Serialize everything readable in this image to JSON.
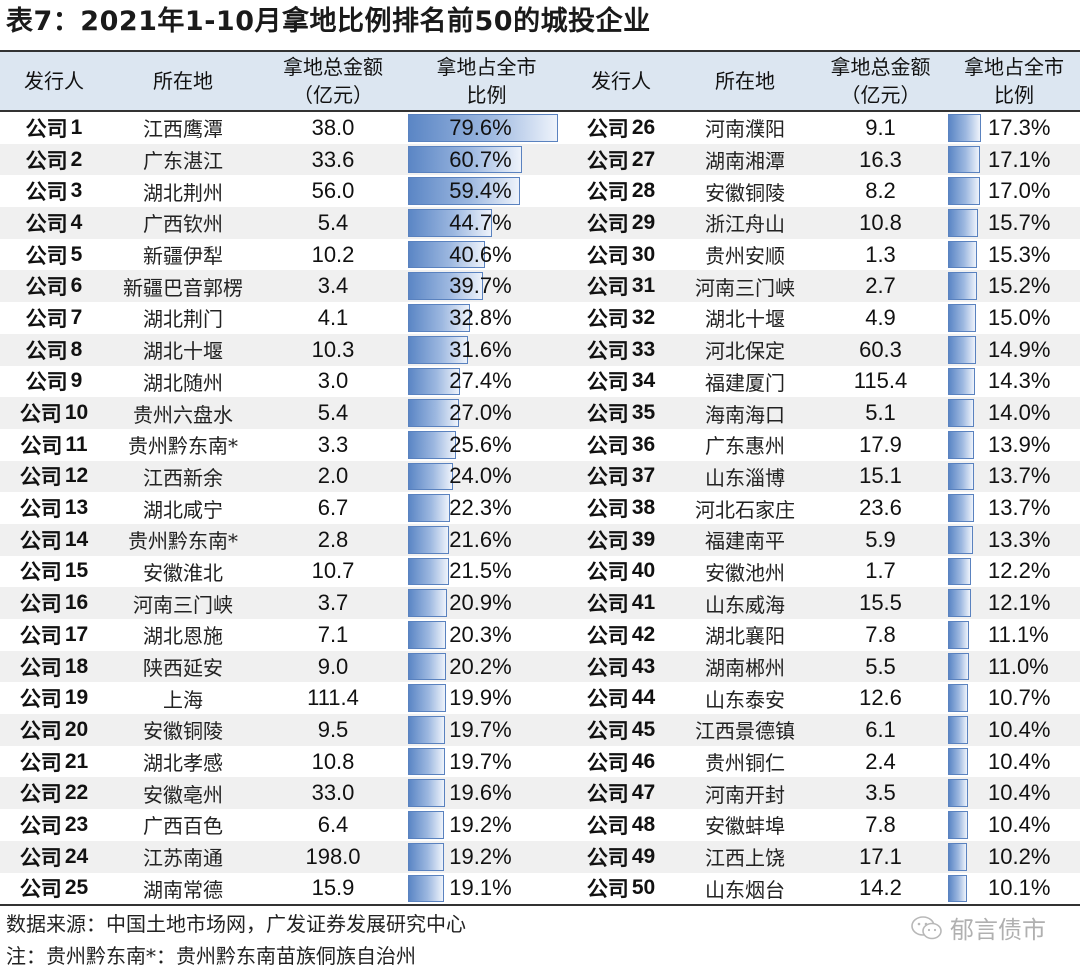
{
  "title": "表7：2021年1-10月拿地比例排名前50的城投企业",
  "header": {
    "issuer": "发行人",
    "location": "所在地",
    "amount_line1": "拿地总金额",
    "amount_line2": "（亿元）",
    "ratio_line1": "拿地占全市",
    "ratio_line2": "比例"
  },
  "colors": {
    "header_bg": "#dce6f1",
    "alt_row_bg": "#f0f0f0",
    "bar_fill": "#5b86c5",
    "bar_border": "#5a82bf"
  },
  "chart_data": {
    "type": "table",
    "title": "2021年1-10月拿地比例排名前50的城投企业",
    "columns": [
      "发行人",
      "所在地",
      "拿地总金额（亿元）",
      "拿地占全市比例"
    ],
    "rows": [
      [
        "公司1",
        "江西鹰潭",
        38.0,
        79.6
      ],
      [
        "公司2",
        "广东湛江",
        33.6,
        60.7
      ],
      [
        "公司3",
        "湖北荆州",
        56.0,
        59.4
      ],
      [
        "公司4",
        "广西钦州",
        5.4,
        44.7
      ],
      [
        "公司5",
        "新疆伊犁",
        10.2,
        40.6
      ],
      [
        "公司6",
        "新疆巴音郭楞",
        3.4,
        39.7
      ],
      [
        "公司7",
        "湖北荆门",
        4.1,
        32.8
      ],
      [
        "公司8",
        "湖北十堰",
        10.3,
        31.6
      ],
      [
        "公司9",
        "湖北随州",
        3.0,
        27.4
      ],
      [
        "公司10",
        "贵州六盘水",
        5.4,
        27.0
      ],
      [
        "公司11",
        "贵州黔东南*",
        3.3,
        25.6
      ],
      [
        "公司12",
        "江西新余",
        2.0,
        24.0
      ],
      [
        "公司13",
        "湖北咸宁",
        6.7,
        22.3
      ],
      [
        "公司14",
        "贵州黔东南*",
        2.8,
        21.6
      ],
      [
        "公司15",
        "安徽淮北",
        10.7,
        21.5
      ],
      [
        "公司16",
        "河南三门峡",
        3.7,
        20.9
      ],
      [
        "公司17",
        "湖北恩施",
        7.1,
        20.3
      ],
      [
        "公司18",
        "陕西延安",
        9.0,
        20.2
      ],
      [
        "公司19",
        "上海",
        111.4,
        19.9
      ],
      [
        "公司20",
        "安徽铜陵",
        9.5,
        19.7
      ],
      [
        "公司21",
        "湖北孝感",
        10.8,
        19.7
      ],
      [
        "公司22",
        "安徽亳州",
        33.0,
        19.6
      ],
      [
        "公司23",
        "广西百色",
        6.4,
        19.2
      ],
      [
        "公司24",
        "江苏南通",
        198.0,
        19.2
      ],
      [
        "公司25",
        "湖南常德",
        15.9,
        19.1
      ],
      [
        "公司26",
        "河南濮阳",
        9.1,
        17.3
      ],
      [
        "公司27",
        "湖南湘潭",
        16.3,
        17.1
      ],
      [
        "公司28",
        "安徽铜陵",
        8.2,
        17.0
      ],
      [
        "公司29",
        "浙江舟山",
        10.8,
        15.7
      ],
      [
        "公司30",
        "贵州安顺",
        1.3,
        15.3
      ],
      [
        "公司31",
        "河南三门峡",
        2.7,
        15.2
      ],
      [
        "公司32",
        "湖北十堰",
        4.9,
        15.0
      ],
      [
        "公司33",
        "河北保定",
        60.3,
        14.9
      ],
      [
        "公司34",
        "福建厦门",
        115.4,
        14.3
      ],
      [
        "公司35",
        "海南海口",
        5.1,
        14.0
      ],
      [
        "公司36",
        "广东惠州",
        17.9,
        13.9
      ],
      [
        "公司37",
        "山东淄博",
        15.1,
        13.7
      ],
      [
        "公司38",
        "河北石家庄",
        23.6,
        13.7
      ],
      [
        "公司39",
        "福建南平",
        5.9,
        13.3
      ],
      [
        "公司40",
        "安徽池州",
        1.7,
        12.2
      ],
      [
        "公司41",
        "山东威海",
        15.5,
        12.1
      ],
      [
        "公司42",
        "湖北襄阳",
        7.8,
        11.1
      ],
      [
        "公司43",
        "湖南郴州",
        5.5,
        11.0
      ],
      [
        "公司44",
        "山东泰安",
        12.6,
        10.7
      ],
      [
        "公司45",
        "江西景德镇",
        6.1,
        10.4
      ],
      [
        "公司46",
        "贵州铜仁",
        2.4,
        10.4
      ],
      [
        "公司47",
        "河南开封",
        3.5,
        10.4
      ],
      [
        "公司48",
        "安徽蚌埠",
        7.8,
        10.4
      ],
      [
        "公司49",
        "江西上饶",
        17.1,
        10.2
      ],
      [
        "公司50",
        "山东烟台",
        14.2,
        10.1
      ]
    ]
  },
  "left": [
    {
      "prefix": "公司",
      "num": "1",
      "location": "江西鹰潭",
      "amount": "38.0",
      "ratio": "79.6%",
      "ratio_value": 79.6
    },
    {
      "prefix": "公司",
      "num": "2",
      "location": "广东湛江",
      "amount": "33.6",
      "ratio": "60.7%",
      "ratio_value": 60.7
    },
    {
      "prefix": "公司",
      "num": "3",
      "location": "湖北荆州",
      "amount": "56.0",
      "ratio": "59.4%",
      "ratio_value": 59.4
    },
    {
      "prefix": "公司",
      "num": "4",
      "location": "广西钦州",
      "amount": "5.4",
      "ratio": "44.7%",
      "ratio_value": 44.7
    },
    {
      "prefix": "公司",
      "num": "5",
      "location": "新疆伊犁",
      "amount": "10.2",
      "ratio": "40.6%",
      "ratio_value": 40.6
    },
    {
      "prefix": "公司",
      "num": "6",
      "location": "新疆巴音郭楞",
      "amount": "3.4",
      "ratio": "39.7%",
      "ratio_value": 39.7
    },
    {
      "prefix": "公司",
      "num": "7",
      "location": "湖北荆门",
      "amount": "4.1",
      "ratio": "32.8%",
      "ratio_value": 32.8
    },
    {
      "prefix": "公司",
      "num": "8",
      "location": "湖北十堰",
      "amount": "10.3",
      "ratio": "31.6%",
      "ratio_value": 31.6
    },
    {
      "prefix": "公司",
      "num": "9",
      "location": "湖北随州",
      "amount": "3.0",
      "ratio": "27.4%",
      "ratio_value": 27.4
    },
    {
      "prefix": "公司",
      "num": "10",
      "location": "贵州六盘水",
      "amount": "5.4",
      "ratio": "27.0%",
      "ratio_value": 27.0
    },
    {
      "prefix": "公司",
      "num": "11",
      "location": "贵州黔东南*",
      "amount": "3.3",
      "ratio": "25.6%",
      "ratio_value": 25.6
    },
    {
      "prefix": "公司",
      "num": "12",
      "location": "江西新余",
      "amount": "2.0",
      "ratio": "24.0%",
      "ratio_value": 24.0
    },
    {
      "prefix": "公司",
      "num": "13",
      "location": "湖北咸宁",
      "amount": "6.7",
      "ratio": "22.3%",
      "ratio_value": 22.3
    },
    {
      "prefix": "公司",
      "num": "14",
      "location": "贵州黔东南*",
      "amount": "2.8",
      "ratio": "21.6%",
      "ratio_value": 21.6
    },
    {
      "prefix": "公司",
      "num": "15",
      "location": "安徽淮北",
      "amount": "10.7",
      "ratio": "21.5%",
      "ratio_value": 21.5
    },
    {
      "prefix": "公司",
      "num": "16",
      "location": "河南三门峡",
      "amount": "3.7",
      "ratio": "20.9%",
      "ratio_value": 20.9
    },
    {
      "prefix": "公司",
      "num": "17",
      "location": "湖北恩施",
      "amount": "7.1",
      "ratio": "20.3%",
      "ratio_value": 20.3
    },
    {
      "prefix": "公司",
      "num": "18",
      "location": "陕西延安",
      "amount": "9.0",
      "ratio": "20.2%",
      "ratio_value": 20.2
    },
    {
      "prefix": "公司",
      "num": "19",
      "location": "上海",
      "amount": "111.4",
      "ratio": "19.9%",
      "ratio_value": 19.9
    },
    {
      "prefix": "公司",
      "num": "20",
      "location": "安徽铜陵",
      "amount": "9.5",
      "ratio": "19.7%",
      "ratio_value": 19.7
    },
    {
      "prefix": "公司",
      "num": "21",
      "location": "湖北孝感",
      "amount": "10.8",
      "ratio": "19.7%",
      "ratio_value": 19.7
    },
    {
      "prefix": "公司",
      "num": "22",
      "location": "安徽亳州",
      "amount": "33.0",
      "ratio": "19.6%",
      "ratio_value": 19.6
    },
    {
      "prefix": "公司",
      "num": "23",
      "location": "广西百色",
      "amount": "6.4",
      "ratio": "19.2%",
      "ratio_value": 19.2
    },
    {
      "prefix": "公司",
      "num": "24",
      "location": "江苏南通",
      "amount": "198.0",
      "ratio": "19.2%",
      "ratio_value": 19.2
    },
    {
      "prefix": "公司",
      "num": "25",
      "location": "湖南常德",
      "amount": "15.9",
      "ratio": "19.1%",
      "ratio_value": 19.1
    }
  ],
  "right": [
    {
      "prefix": "公司",
      "num": "26",
      "location": "河南濮阳",
      "amount": "9.1",
      "ratio": "17.3%",
      "ratio_value": 17.3
    },
    {
      "prefix": "公司",
      "num": "27",
      "location": "湖南湘潭",
      "amount": "16.3",
      "ratio": "17.1%",
      "ratio_value": 17.1
    },
    {
      "prefix": "公司",
      "num": "28",
      "location": "安徽铜陵",
      "amount": "8.2",
      "ratio": "17.0%",
      "ratio_value": 17.0
    },
    {
      "prefix": "公司",
      "num": "29",
      "location": "浙江舟山",
      "amount": "10.8",
      "ratio": "15.7%",
      "ratio_value": 15.7
    },
    {
      "prefix": "公司",
      "num": "30",
      "location": "贵州安顺",
      "amount": "1.3",
      "ratio": "15.3%",
      "ratio_value": 15.3
    },
    {
      "prefix": "公司",
      "num": "31",
      "location": "河南三门峡",
      "amount": "2.7",
      "ratio": "15.2%",
      "ratio_value": 15.2
    },
    {
      "prefix": "公司",
      "num": "32",
      "location": "湖北十堰",
      "amount": "4.9",
      "ratio": "15.0%",
      "ratio_value": 15.0
    },
    {
      "prefix": "公司",
      "num": "33",
      "location": "河北保定",
      "amount": "60.3",
      "ratio": "14.9%",
      "ratio_value": 14.9
    },
    {
      "prefix": "公司",
      "num": "34",
      "location": "福建厦门",
      "amount": "115.4",
      "ratio": "14.3%",
      "ratio_value": 14.3
    },
    {
      "prefix": "公司",
      "num": "35",
      "location": "海南海口",
      "amount": "5.1",
      "ratio": "14.0%",
      "ratio_value": 14.0
    },
    {
      "prefix": "公司",
      "num": "36",
      "location": "广东惠州",
      "amount": "17.9",
      "ratio": "13.9%",
      "ratio_value": 13.9
    },
    {
      "prefix": "公司",
      "num": "37",
      "location": "山东淄博",
      "amount": "15.1",
      "ratio": "13.7%",
      "ratio_value": 13.7
    },
    {
      "prefix": "公司",
      "num": "38",
      "location": "河北石家庄",
      "amount": "23.6",
      "ratio": "13.7%",
      "ratio_value": 13.7
    },
    {
      "prefix": "公司",
      "num": "39",
      "location": "福建南平",
      "amount": "5.9",
      "ratio": "13.3%",
      "ratio_value": 13.3
    },
    {
      "prefix": "公司",
      "num": "40",
      "location": "安徽池州",
      "amount": "1.7",
      "ratio": "12.2%",
      "ratio_value": 12.2
    },
    {
      "prefix": "公司",
      "num": "41",
      "location": "山东威海",
      "amount": "15.5",
      "ratio": "12.1%",
      "ratio_value": 12.1
    },
    {
      "prefix": "公司",
      "num": "42",
      "location": "湖北襄阳",
      "amount": "7.8",
      "ratio": "11.1%",
      "ratio_value": 11.1
    },
    {
      "prefix": "公司",
      "num": "43",
      "location": "湖南郴州",
      "amount": "5.5",
      "ratio": "11.0%",
      "ratio_value": 11.0
    },
    {
      "prefix": "公司",
      "num": "44",
      "location": "山东泰安",
      "amount": "12.6",
      "ratio": "10.7%",
      "ratio_value": 10.7
    },
    {
      "prefix": "公司",
      "num": "45",
      "location": "江西景德镇",
      "amount": "6.1",
      "ratio": "10.4%",
      "ratio_value": 10.4
    },
    {
      "prefix": "公司",
      "num": "46",
      "location": "贵州铜仁",
      "amount": "2.4",
      "ratio": "10.4%",
      "ratio_value": 10.4
    },
    {
      "prefix": "公司",
      "num": "47",
      "location": "河南开封",
      "amount": "3.5",
      "ratio": "10.4%",
      "ratio_value": 10.4
    },
    {
      "prefix": "公司",
      "num": "48",
      "location": "安徽蚌埠",
      "amount": "7.8",
      "ratio": "10.4%",
      "ratio_value": 10.4
    },
    {
      "prefix": "公司",
      "num": "49",
      "location": "江西上饶",
      "amount": "17.1",
      "ratio": "10.2%",
      "ratio_value": 10.2
    },
    {
      "prefix": "公司",
      "num": "50",
      "location": "山东烟台",
      "amount": "14.2",
      "ratio": "10.1%",
      "ratio_value": 10.1
    }
  ],
  "footer": {
    "source": "数据来源：中国土地市场网，广发证券发展研究中心",
    "note": "注：贵州黔东南*：贵州黔东南苗族侗族自治州",
    "watermark": "郁言债市"
  }
}
